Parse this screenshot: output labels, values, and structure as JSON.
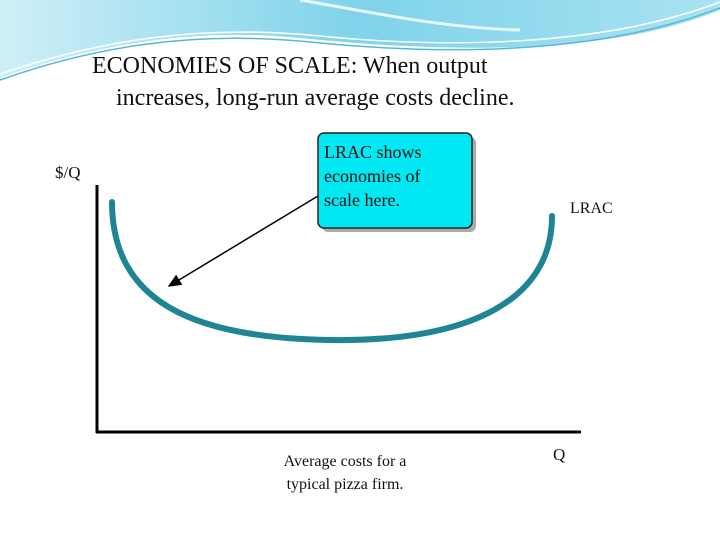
{
  "header": {
    "title_lines": [
      "ECONOMIES OF SCALE:  When output",
      "increases, long-run average costs decline."
    ]
  },
  "diagram": {
    "y_axis_label": "$/Q",
    "x_axis_label": "Q",
    "curve_label": "LRAC",
    "callout_lines": [
      "LRAC shows",
      "economies of",
      "scale here."
    ],
    "caption_lines": [
      "Average costs for a",
      "typical pizza firm."
    ]
  }
}
